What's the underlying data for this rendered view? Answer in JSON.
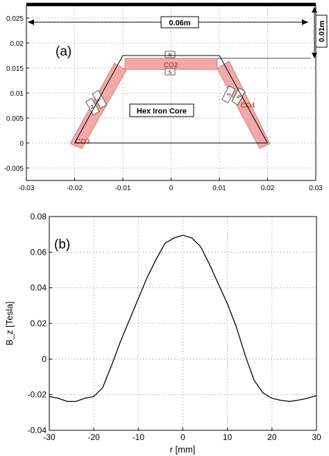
{
  "panel_a": {
    "label": "(a)",
    "dimension_width": "0.06m",
    "dimension_height": "0.01m",
    "core_label": "Hex Iron Core",
    "pole_n": "N",
    "pole_s": "S",
    "colors": {
      "coil": "#f2a9a9",
      "coil_edge": "#c96b6b",
      "coil_text": "#cc1111",
      "line": "#000000",
      "grid": "#9a9a9a"
    },
    "coils": [
      {
        "name": "CO2"
      },
      {
        "name": "CO3"
      },
      {
        "name": "CO4"
      }
    ]
  },
  "chart_data": [
    {
      "type": "scatter",
      "panel": "a",
      "xlim": [
        -0.03,
        0.03
      ],
      "ylim": [
        -0.0075,
        0.0275
      ],
      "xticks": [
        "-0.03",
        "-0.02",
        "-0.01",
        "0",
        "0.01",
        "0.02",
        "0.03"
      ],
      "yticks": [
        "-0.005",
        "0",
        "0.005",
        "0.01",
        "0.015",
        "0.02",
        "0.025"
      ],
      "grid": true,
      "core_outline": [
        [
          -0.02,
          0
        ],
        [
          -0.01,
          0.0175
        ],
        [
          0.01,
          0.0175
        ],
        [
          0.02,
          0
        ]
      ]
    },
    {
      "type": "line",
      "panel": "b",
      "label": "(b)",
      "xlabel": "r [mm]",
      "ylabel": "B_z [Tesla]",
      "xlim": [
        -30,
        30
      ],
      "ylim": [
        -0.04,
        0.08
      ],
      "xticks": [
        "-30",
        "-20",
        "-10",
        "0",
        "10",
        "20",
        "30"
      ],
      "yticks": [
        "-0.04",
        "-0.02",
        "0",
        "0.02",
        "0.04",
        "0.06",
        "0.08"
      ],
      "grid": true,
      "series": [
        {
          "x": [
            -30,
            -28,
            -26,
            -24,
            -22,
            -20,
            -18,
            -16,
            -14,
            -12,
            -10,
            -8,
            -6,
            -4,
            -2,
            0,
            2,
            4,
            6,
            8,
            10,
            12,
            14,
            16,
            18,
            20,
            22,
            24,
            26,
            28,
            30
          ],
          "y": [
            -0.021,
            -0.022,
            -0.0238,
            -0.0238,
            -0.022,
            -0.021,
            -0.016,
            -0.0035,
            0.01,
            0.022,
            0.034,
            0.046,
            0.056,
            0.065,
            0.068,
            0.0695,
            0.068,
            0.063,
            0.053,
            0.042,
            0.031,
            0.018,
            0.002,
            -0.012,
            -0.019,
            -0.022,
            -0.0232,
            -0.0238,
            -0.023,
            -0.022,
            -0.0205
          ]
        }
      ]
    }
  ]
}
